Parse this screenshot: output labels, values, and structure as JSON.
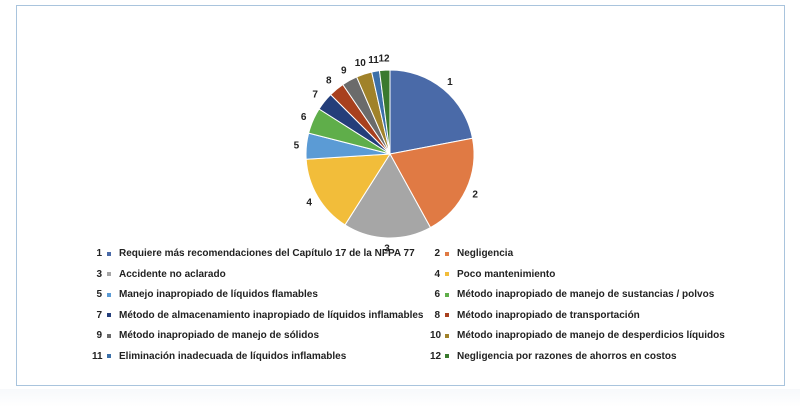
{
  "chart_data": {
    "type": "pie",
    "slices": [
      {
        "label": "1",
        "name": "Requiere más recomendaciones del Capítulo 17 de la NFPA 77",
        "value": 22.0,
        "color": "#4a6aa8"
      },
      {
        "label": "2",
        "name": "Negligencia",
        "value": 20.0,
        "color": "#e07a44"
      },
      {
        "label": "3",
        "name": "Accidente no aclarado",
        "value": 17.0,
        "color": "#a6a6a6"
      },
      {
        "label": "4",
        "name": "Poco mantenimiento",
        "value": 15.0,
        "color": "#f2bd3a"
      },
      {
        "label": "5",
        "name": "Manejo inapropiado de líquidos flamables",
        "value": 5.0,
        "color": "#5b9bd5"
      },
      {
        "label": "6",
        "name": "Método inapropiado de manejo de sustancias / polvos",
        "value": 5.0,
        "color": "#5fae4a"
      },
      {
        "label": "7",
        "name": "Método de almacenamiento inapropiado de líquidos inflamables",
        "value": 3.5,
        "color": "#243e7a"
      },
      {
        "label": "8",
        "name": "Método inapropiado de transportación",
        "value": 3.0,
        "color": "#a8401e"
      },
      {
        "label": "9",
        "name": "Método inapropiado de manejo de sólidos",
        "value": 3.0,
        "color": "#6b6b6b"
      },
      {
        "label": "10",
        "name": "Método inapropiado de manejo de desperdicios líquidos",
        "value": 3.0,
        "color": "#a0822a"
      },
      {
        "label": "11",
        "name": "Eliminación inadecuada de líquidos inflamables",
        "value": 1.5,
        "color": "#3c70a8"
      },
      {
        "label": "12",
        "name": "Negligencia por razones de ahorros en costos",
        "value": 2.0,
        "color": "#3a7a2e"
      }
    ],
    "legend_position": "bottom"
  }
}
